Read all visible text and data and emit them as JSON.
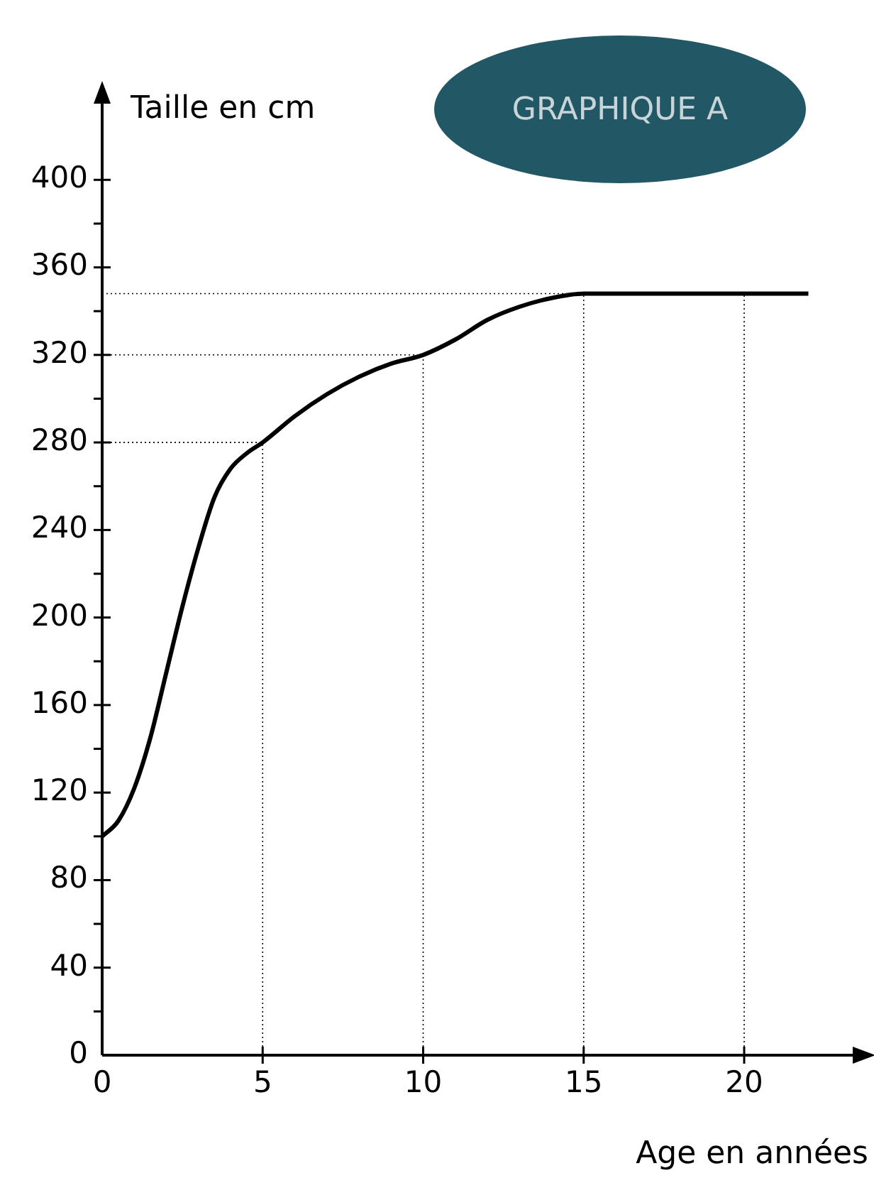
{
  "chart_data": {
    "type": "line",
    "title": "GRAPHIQUE A",
    "xlabel": "Age en années",
    "ylabel": "Taille en cm",
    "x": [
      0,
      0.5,
      1,
      1.5,
      2,
      2.5,
      3,
      3.5,
      4,
      4.5,
      5,
      6,
      7,
      8,
      9,
      10,
      11,
      12,
      13,
      14,
      15,
      22
    ],
    "series": [
      {
        "color": "#000000",
        "values": [
          100,
          107,
          122,
          145,
          175,
          205,
          232,
          255,
          268,
          275,
          280,
          292,
          302,
          310,
          316,
          320,
          327,
          336,
          342,
          346,
          348,
          348
        ]
      }
    ],
    "xlim": [
      0,
      24
    ],
    "xticks": [
      0,
      5,
      10,
      15,
      20
    ],
    "ylim": [
      0,
      440
    ],
    "yticks": [
      0,
      {
        "value": 20,
        "label": null
      },
      40,
      {
        "value": 60,
        "label": null
      },
      80,
      {
        "value": 100,
        "label": null
      },
      120,
      {
        "value": 140,
        "label": null
      },
      160,
      {
        "value": 180,
        "label": null
      },
      200,
      {
        "value": 220,
        "label": null
      },
      240,
      {
        "value": 260,
        "label": null
      },
      280,
      {
        "value": 300,
        "label": null
      },
      320,
      {
        "value": 340,
        "label": null
      },
      360,
      {
        "value": 380,
        "label": null
      },
      400
    ],
    "ref_lines": [
      {
        "axis": "y",
        "value": 280,
        "line_style": "dotted"
      },
      {
        "axis": "y",
        "value": 320,
        "line_style": "dotted"
      },
      {
        "axis": "y",
        "value": 348,
        "line_style": "dotted"
      },
      {
        "axis": "x",
        "value": 5,
        "line_style": "dotted"
      },
      {
        "axis": "x",
        "value": 10,
        "line_style": "dotted"
      },
      {
        "axis": "x",
        "value": 15,
        "line_style": "dotted"
      },
      {
        "axis": "x",
        "value": 20,
        "line_style": "dotted"
      }
    ],
    "grid": false,
    "legend": false,
    "marker": "none",
    "line_style": "solid"
  }
}
